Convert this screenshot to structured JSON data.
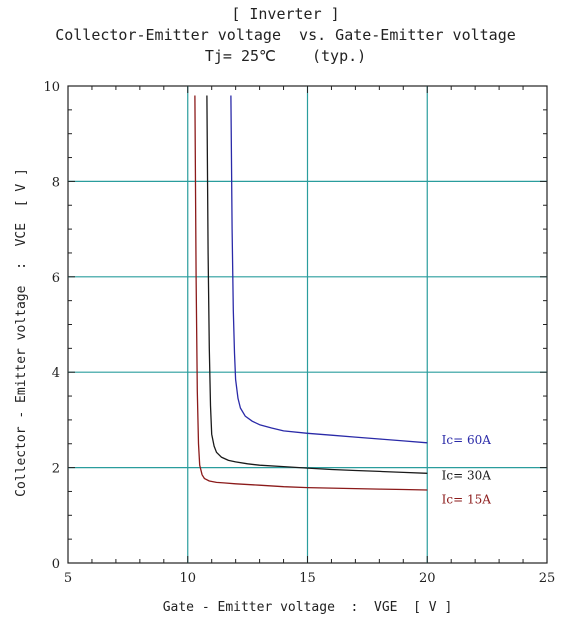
{
  "chart_data": {
    "type": "line",
    "title": "[ Inverter ]",
    "subtitle": "Collector-Emitter voltage  vs. Gate-Emitter voltage",
    "condition": "Tj= 25℃    (typ.)",
    "xlabel": "Gate - Emitter voltage  :  VGE  [ V ]",
    "ylabel": "Collector - Emitter voltage  :  VCE  [ V ]",
    "xlim": [
      5,
      25
    ],
    "ylim": [
      0,
      10
    ],
    "xticks": [
      5,
      10,
      15,
      20,
      25
    ],
    "yticks": [
      0,
      2,
      4,
      6,
      8,
      10
    ],
    "grid": true,
    "grid_color": "#2a9d9d",
    "series": [
      {
        "name": "Ic= 60A",
        "color": "#2a2aa8",
        "x": [
          11.8,
          11.85,
          11.9,
          11.95,
          12.0,
          12.1,
          12.2,
          12.4,
          12.7,
          13.0,
          13.5,
          14.0,
          15.0,
          16.0,
          17.0,
          18.0,
          19.0,
          20.0
        ],
        "y": [
          9.8,
          7.0,
          5.3,
          4.4,
          3.85,
          3.45,
          3.25,
          3.08,
          2.97,
          2.9,
          2.83,
          2.77,
          2.72,
          2.68,
          2.64,
          2.6,
          2.56,
          2.52
        ]
      },
      {
        "name": "Ic= 30A",
        "color": "#1a1a1a",
        "x": [
          10.8,
          10.85,
          10.9,
          10.95,
          11.0,
          11.1,
          11.2,
          11.4,
          11.7,
          12.0,
          12.5,
          13.0,
          14.0,
          15.0,
          16.0,
          17.0,
          18.0,
          19.0,
          20.0
        ],
        "y": [
          9.8,
          6.5,
          4.5,
          3.3,
          2.7,
          2.45,
          2.32,
          2.22,
          2.15,
          2.12,
          2.08,
          2.05,
          2.02,
          1.99,
          1.96,
          1.94,
          1.92,
          1.9,
          1.88
        ]
      },
      {
        "name": "Ic= 15A",
        "color": "#8b1a1a",
        "x": [
          10.3,
          10.35,
          10.4,
          10.45,
          10.5,
          10.6,
          10.7,
          10.9,
          11.2,
          11.5,
          12.0,
          13.0,
          14.0,
          15.0,
          16.0,
          17.0,
          18.0,
          19.0,
          20.0
        ],
        "y": [
          9.8,
          6.0,
          3.6,
          2.5,
          2.05,
          1.85,
          1.77,
          1.72,
          1.69,
          1.68,
          1.66,
          1.63,
          1.6,
          1.58,
          1.57,
          1.56,
          1.55,
          1.54,
          1.53
        ]
      }
    ],
    "annotations": [
      {
        "text": "Ic= 60A",
        "x": 20.6,
        "y": 2.5,
        "color": "#2a2aa8"
      },
      {
        "text": "Ic= 30A",
        "x": 20.6,
        "y": 1.75,
        "color": "#1a1a1a"
      },
      {
        "text": "Ic= 15A",
        "x": 20.6,
        "y": 1.25,
        "color": "#8b1a1a"
      }
    ]
  }
}
